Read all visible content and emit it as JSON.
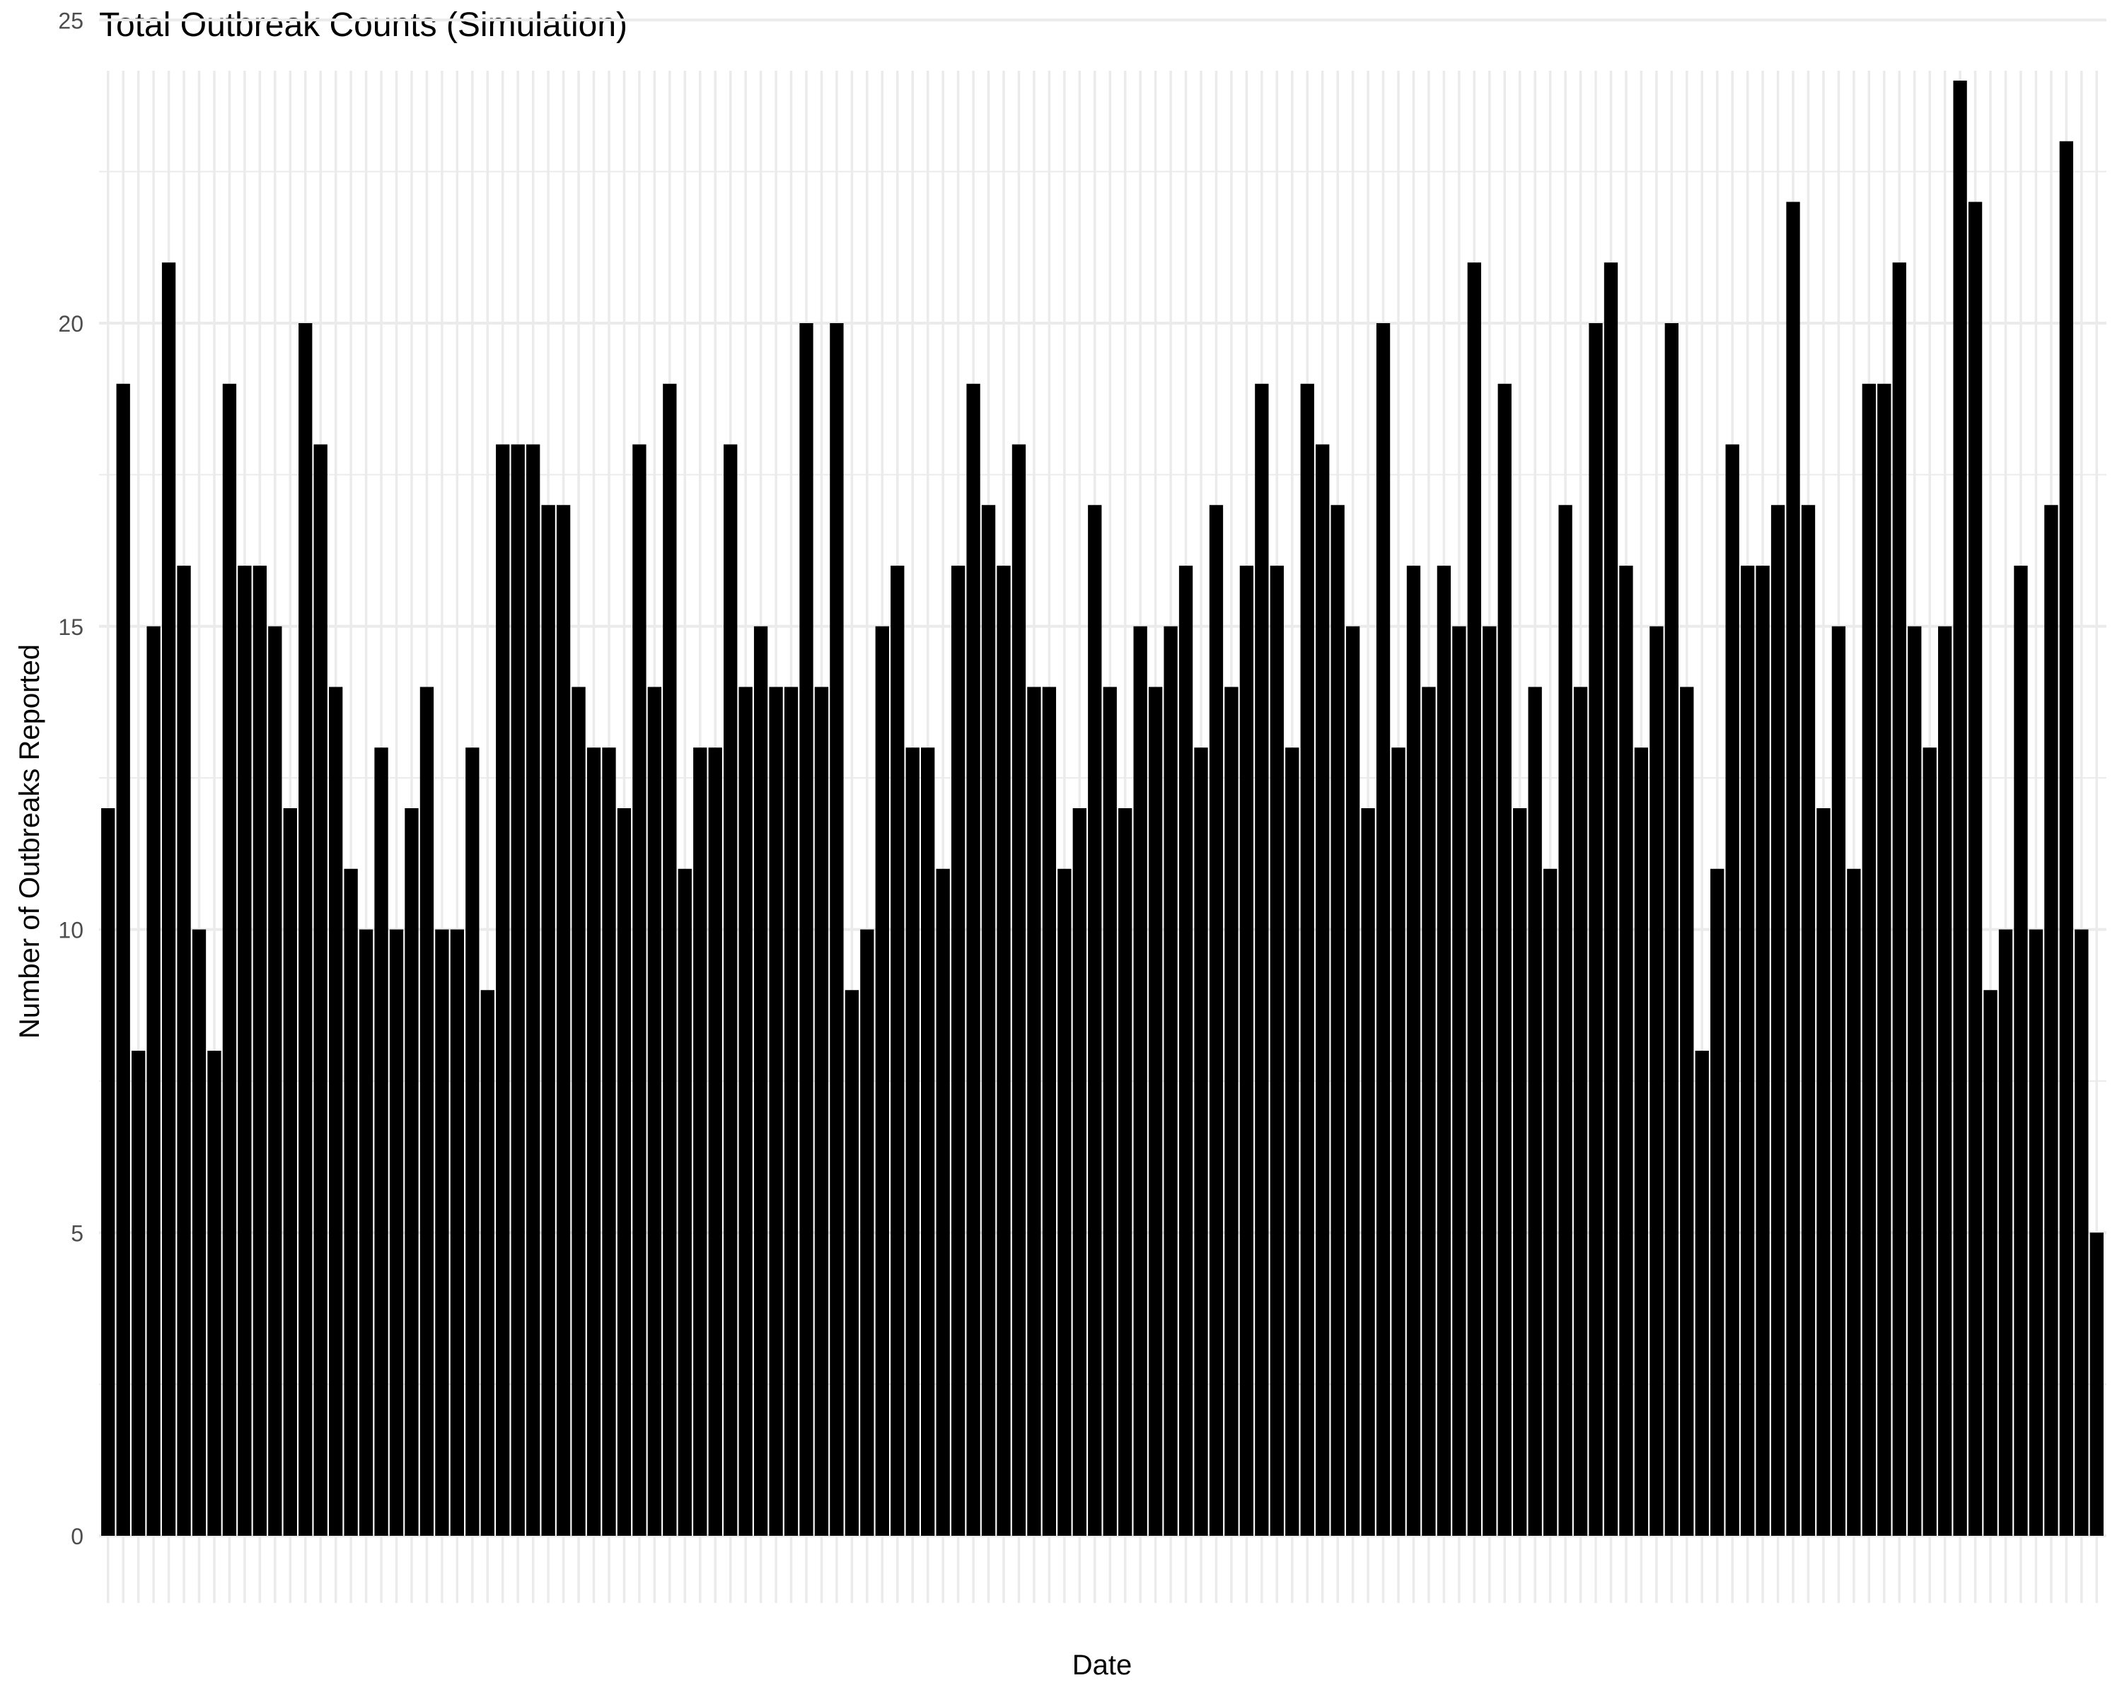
{
  "chart_data": {
    "type": "bar",
    "title": "Total Outbreak Counts (Simulation)",
    "xlabel": "Date",
    "ylabel": "Number of Outbreaks Reported",
    "ylim": [
      0,
      25
    ],
    "yticks": [
      0,
      5,
      10,
      15,
      20,
      25
    ],
    "grid": true,
    "bar_color": "#000000",
    "grid_color": "#ebebeb",
    "values": [
      12,
      19,
      8,
      15,
      21,
      16,
      10,
      8,
      19,
      16,
      16,
      15,
      12,
      20,
      18,
      14,
      11,
      10,
      13,
      10,
      12,
      14,
      10,
      10,
      13,
      9,
      18,
      18,
      18,
      17,
      17,
      14,
      13,
      13,
      12,
      18,
      14,
      19,
      11,
      13,
      13,
      18,
      14,
      15,
      14,
      14,
      20,
      14,
      20,
      9,
      10,
      15,
      16,
      13,
      13,
      11,
      16,
      19,
      17,
      16,
      18,
      14,
      14,
      11,
      12,
      17,
      14,
      12,
      15,
      14,
      15,
      16,
      13,
      17,
      14,
      16,
      19,
      16,
      13,
      19,
      18,
      17,
      15,
      12,
      20,
      13,
      16,
      14,
      16,
      15,
      21,
      15,
      19,
      12,
      14,
      11,
      17,
      14,
      20,
      21,
      16,
      13,
      15,
      20,
      14,
      8,
      11,
      18,
      16,
      16,
      17,
      22,
      17,
      12,
      15,
      11,
      19,
      19,
      21,
      15,
      13,
      15,
      24,
      22,
      9,
      10,
      16,
      10,
      17,
      23,
      10,
      5
    ]
  }
}
